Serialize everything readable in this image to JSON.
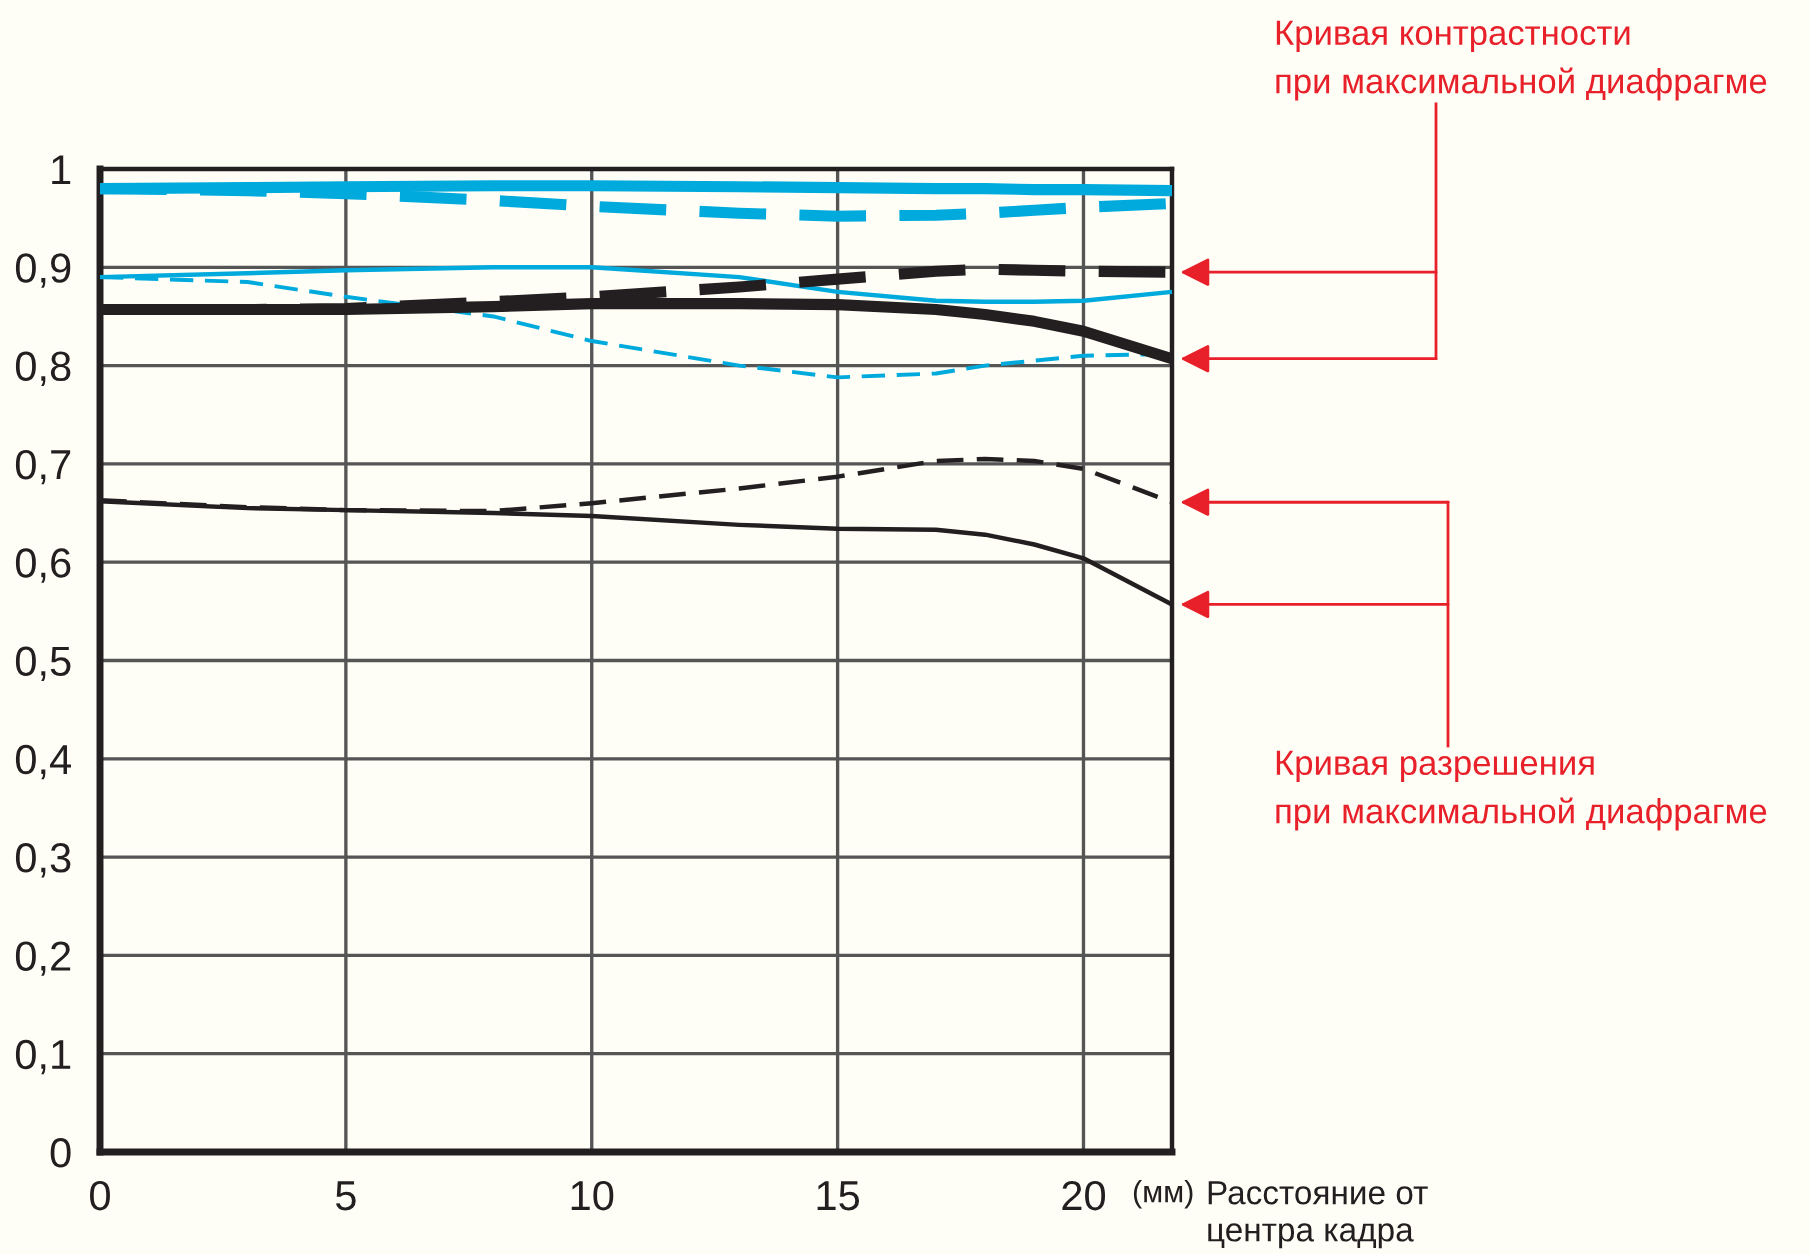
{
  "chart_data": {
    "type": "line",
    "xlabel": "Расстояние от\nцентра кадра",
    "x": [
      0,
      3,
      5,
      8,
      10,
      13,
      15,
      17,
      18,
      19,
      20,
      21.8
    ],
    "series": [
      {
        "color": "#00aadd",
        "values": [
          0.98,
          0.981,
          0.982,
          0.983,
          0.983,
          0.982,
          0.981,
          0.98,
          0.98,
          0.979,
          0.979,
          0.978
        ]
      },
      {
        "color": "#00aadd",
        "line_style": "dashed",
        "values": [
          0.98,
          0.978,
          0.975,
          0.968,
          0.962,
          0.955,
          0.952,
          0.953,
          0.955,
          0.958,
          0.961,
          0.965
        ]
      },
      {
        "color": "#00aadd",
        "values": [
          0.89,
          0.894,
          0.897,
          0.9,
          0.9,
          0.89,
          0.875,
          0.866,
          0.865,
          0.865,
          0.866,
          0.875
        ]
      },
      {
        "color": "#00aadd",
        "line_style": "dashed",
        "values": [
          0.89,
          0.885,
          0.87,
          0.85,
          0.825,
          0.8,
          0.788,
          0.792,
          0.8,
          0.805,
          0.81,
          0.812
        ]
      },
      {
        "color": "#231f20",
        "values": [
          0.857,
          0.857,
          0.857,
          0.86,
          0.863,
          0.863,
          0.862,
          0.857,
          0.852,
          0.845,
          0.835,
          0.807
        ]
      },
      {
        "color": "#231f20",
        "line_style": "dashed",
        "values": [
          0.857,
          0.857,
          0.858,
          0.865,
          0.87,
          0.88,
          0.888,
          0.896,
          0.898,
          0.897,
          0.896,
          0.895
        ]
      },
      {
        "color": "#231f20",
        "values": [
          0.662,
          0.655,
          0.653,
          0.65,
          0.647,
          0.638,
          0.634,
          0.633,
          0.628,
          0.618,
          0.604,
          0.557
        ]
      },
      {
        "color": "#231f20",
        "line_style": "dashed",
        "values": [
          0.663,
          0.656,
          0.653,
          0.652,
          0.66,
          0.675,
          0.687,
          0.703,
          0.705,
          0.703,
          0.695,
          0.661
        ]
      }
    ],
    "xlim": [
      0,
      21.8
    ],
    "ylim": [
      0,
      1
    ],
    "xticks": [
      0,
      5,
      10,
      15,
      20
    ],
    "yticks": [
      0,
      {
        "value": 0.1,
        "label": "0,1"
      },
      {
        "value": 0.2,
        "label": "0,2"
      },
      {
        "value": 0.3,
        "label": "0,3"
      },
      {
        "value": 0.4,
        "label": "0,4"
      },
      {
        "value": 0.5,
        "label": "0,5"
      },
      {
        "value": 0.6,
        "label": "0,6"
      },
      {
        "value": 0.7,
        "label": "0,7"
      },
      {
        "value": 0.8,
        "label": "0,8"
      },
      {
        "value": 0.9,
        "label": "0,9"
      },
      1
    ],
    "grid": true,
    "legend": false,
    "annotations": [
      "(мм)",
      "Кривая контрастности\nпри максимальной диафрагме",
      "Кривая разрешения\nпри максимальной диафрагме"
    ]
  }
}
